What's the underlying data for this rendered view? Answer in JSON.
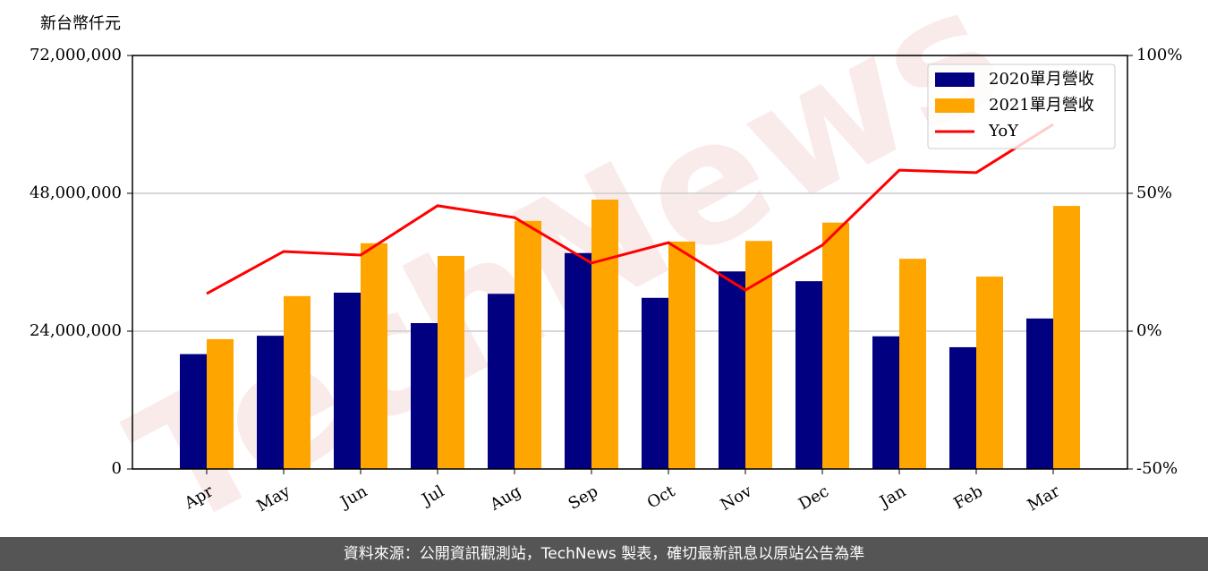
{
  "chart_data": {
    "type": "bar-line",
    "ylabel": "新台幣仟元",
    "watermark": "TechNews",
    "footer": "資料來源：公開資訊觀測站，TechNews 製表，確切最新訊息以原站公告為準",
    "categories": [
      "Apr",
      "May",
      "Jun",
      "Jul",
      "Aug",
      "Sep",
      "Oct",
      "Nov",
      "Dec",
      "Jan",
      "Feb",
      "Mar"
    ],
    "series": [
      {
        "name": "2020單月營收",
        "type": "bar",
        "color": "#000080",
        "values": [
          20000000,
          23200000,
          30700000,
          25400000,
          30500000,
          37600000,
          29800000,
          34400000,
          32700000,
          23100000,
          21200000,
          26200000
        ]
      },
      {
        "name": "2021單月營收",
        "type": "bar",
        "color": "#ffa500",
        "values": [
          22600000,
          30100000,
          39300000,
          37100000,
          43200000,
          46900000,
          39600000,
          39700000,
          42900000,
          36600000,
          33500000,
          45800000
        ]
      },
      {
        "name": "YoY",
        "type": "line",
        "axis": "y2",
        "color": "#ff0000",
        "values": [
          13.6,
          28.9,
          27.6,
          45.5,
          41.2,
          24.7,
          32.1,
          14.9,
          31.2,
          58.4,
          57.5,
          75.0
        ]
      }
    ],
    "ylim": [
      0,
      72000000
    ],
    "yticks": [
      0,
      {
        "value": 24000000,
        "label": "24,000,000"
      },
      {
        "value": 48000000,
        "label": "48,000,000"
      },
      {
        "value": 72000000,
        "label": "72,000,000"
      }
    ],
    "y2lim": [
      -50,
      100
    ],
    "y2ticks": [
      {
        "value": -50,
        "label": "-50%"
      },
      {
        "value": 0,
        "label": "0%"
      },
      {
        "value": 50,
        "label": "50%"
      },
      {
        "value": 100,
        "label": "100%"
      }
    ],
    "grid": true,
    "legend": "upper right"
  }
}
